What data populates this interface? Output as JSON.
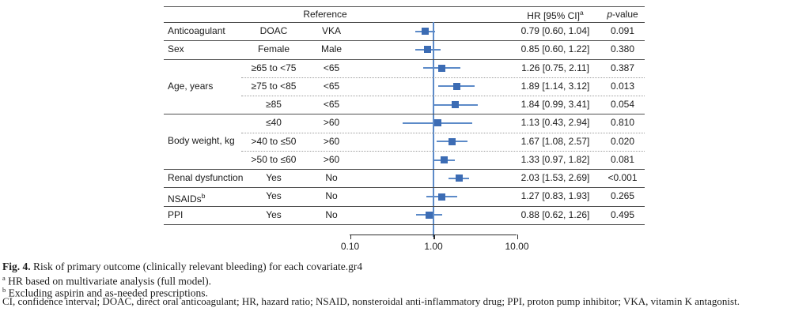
{
  "chart_data": {
    "type": "forest",
    "scale": "log",
    "reference_header": "Reference",
    "hr_header": "HR [95% CI]",
    "hr_header_sup": "a",
    "p_header_italic": "p",
    "p_header_rest": "-value",
    "axis": {
      "range": [
        0.1,
        10
      ],
      "ref_line": 1.0,
      "ticks": [
        {
          "value": 0.1,
          "label": "0.10"
        },
        {
          "value": 1.0,
          "label": "1.00"
        },
        {
          "value": 10.0,
          "label": "10.00"
        }
      ]
    },
    "group_labels": [
      {
        "label": "Age, years",
        "from": 2,
        "span": 3
      },
      {
        "label": "Body weight, kg",
        "from": 5,
        "span": 3
      }
    ],
    "rows": [
      {
        "label": "Anticoagulant",
        "level": "DOAC",
        "reference": "VKA",
        "hr": 0.79,
        "lo": 0.6,
        "hi": 1.04,
        "hr_text": "0.79 [0.60, 1.04]",
        "p": "0.091",
        "sep": "solid"
      },
      {
        "label": "Sex",
        "level": "Female",
        "reference": "Male",
        "hr": 0.85,
        "lo": 0.6,
        "hi": 1.22,
        "hr_text": "0.85 [0.60, 1.22]",
        "p": "0.380",
        "sep": "solid"
      },
      {
        "label": "",
        "level": "≥65 to <75",
        "reference": "<65",
        "hr": 1.26,
        "lo": 0.75,
        "hi": 2.11,
        "hr_text": "1.26 [0.75, 2.11]",
        "p": "0.387",
        "sep": "dotted"
      },
      {
        "label": "",
        "level": "≥75 to <85",
        "reference": "<65",
        "hr": 1.89,
        "lo": 1.14,
        "hi": 3.12,
        "hr_text": "1.89 [1.14, 3.12]",
        "p": "0.013",
        "sep": "dotted"
      },
      {
        "label": "",
        "level": "≥85",
        "reference": "<65",
        "hr": 1.84,
        "lo": 0.99,
        "hi": 3.41,
        "hr_text": "1.84 [0.99, 3.41]",
        "p": "0.054",
        "sep": "solid"
      },
      {
        "label": "",
        "level": "≤40",
        "reference": ">60",
        "hr": 1.13,
        "lo": 0.43,
        "hi": 2.94,
        "hr_text": "1.13 [0.43, 2.94]",
        "p": "0.810",
        "sep": "dotted"
      },
      {
        "label": "",
        "level": ">40 to ≤50",
        "reference": ">60",
        "hr": 1.67,
        "lo": 1.08,
        "hi": 2.57,
        "hr_text": "1.67 [1.08, 2.57]",
        "p": "0.020",
        "sep": "dotted"
      },
      {
        "label": "",
        "level": ">50 to ≤60",
        "reference": ">60",
        "hr": 1.33,
        "lo": 0.97,
        "hi": 1.82,
        "hr_text": "1.33 [0.97, 1.82]",
        "p": "0.081",
        "sep": "solid"
      },
      {
        "label": "Renal dysfunction",
        "level": "Yes",
        "reference": "No",
        "hr": 2.03,
        "lo": 1.53,
        "hi": 2.69,
        "hr_text": "2.03 [1.53, 2.69]",
        "p": "<0.001",
        "sep": "solid"
      },
      {
        "label": "NSAIDs",
        "label_sup": "b",
        "level": "Yes",
        "reference": "No",
        "hr": 1.27,
        "lo": 0.83,
        "hi": 1.93,
        "hr_text": "1.27 [0.83, 1.93]",
        "p": "0.265",
        "sep": "solid"
      },
      {
        "label": "PPI",
        "level": "Yes",
        "reference": "No",
        "hr": 0.88,
        "lo": 0.62,
        "hi": 1.26,
        "hr_text": "0.88 [0.62, 1.26]",
        "p": "0.495",
        "sep": "solid"
      }
    ],
    "colors": {
      "marker": "#3c6cb4",
      "ci_line": "#5c8ac8",
      "ref_line": "#5c8ac8"
    }
  },
  "caption": {
    "fig_label": "Fig. 4.",
    "fig_text": " Risk of primary outcome (clinically relevant bleeding) for each covariate.gr4",
    "footnote_a_sup": "a",
    "footnote_a": " HR based on multivariate analysis (full model).",
    "footnote_b_sup": "b",
    "footnote_b": " Excluding aspirin and as-needed prescriptions.",
    "abbreviations": "CI, confidence interval; DOAC, direct oral anticoagulant; HR, hazard ratio; NSAID, nonsteroidal anti-inflammatory drug; PPI, proton pump inhibitor; VKA, vitamin K antagonist."
  }
}
